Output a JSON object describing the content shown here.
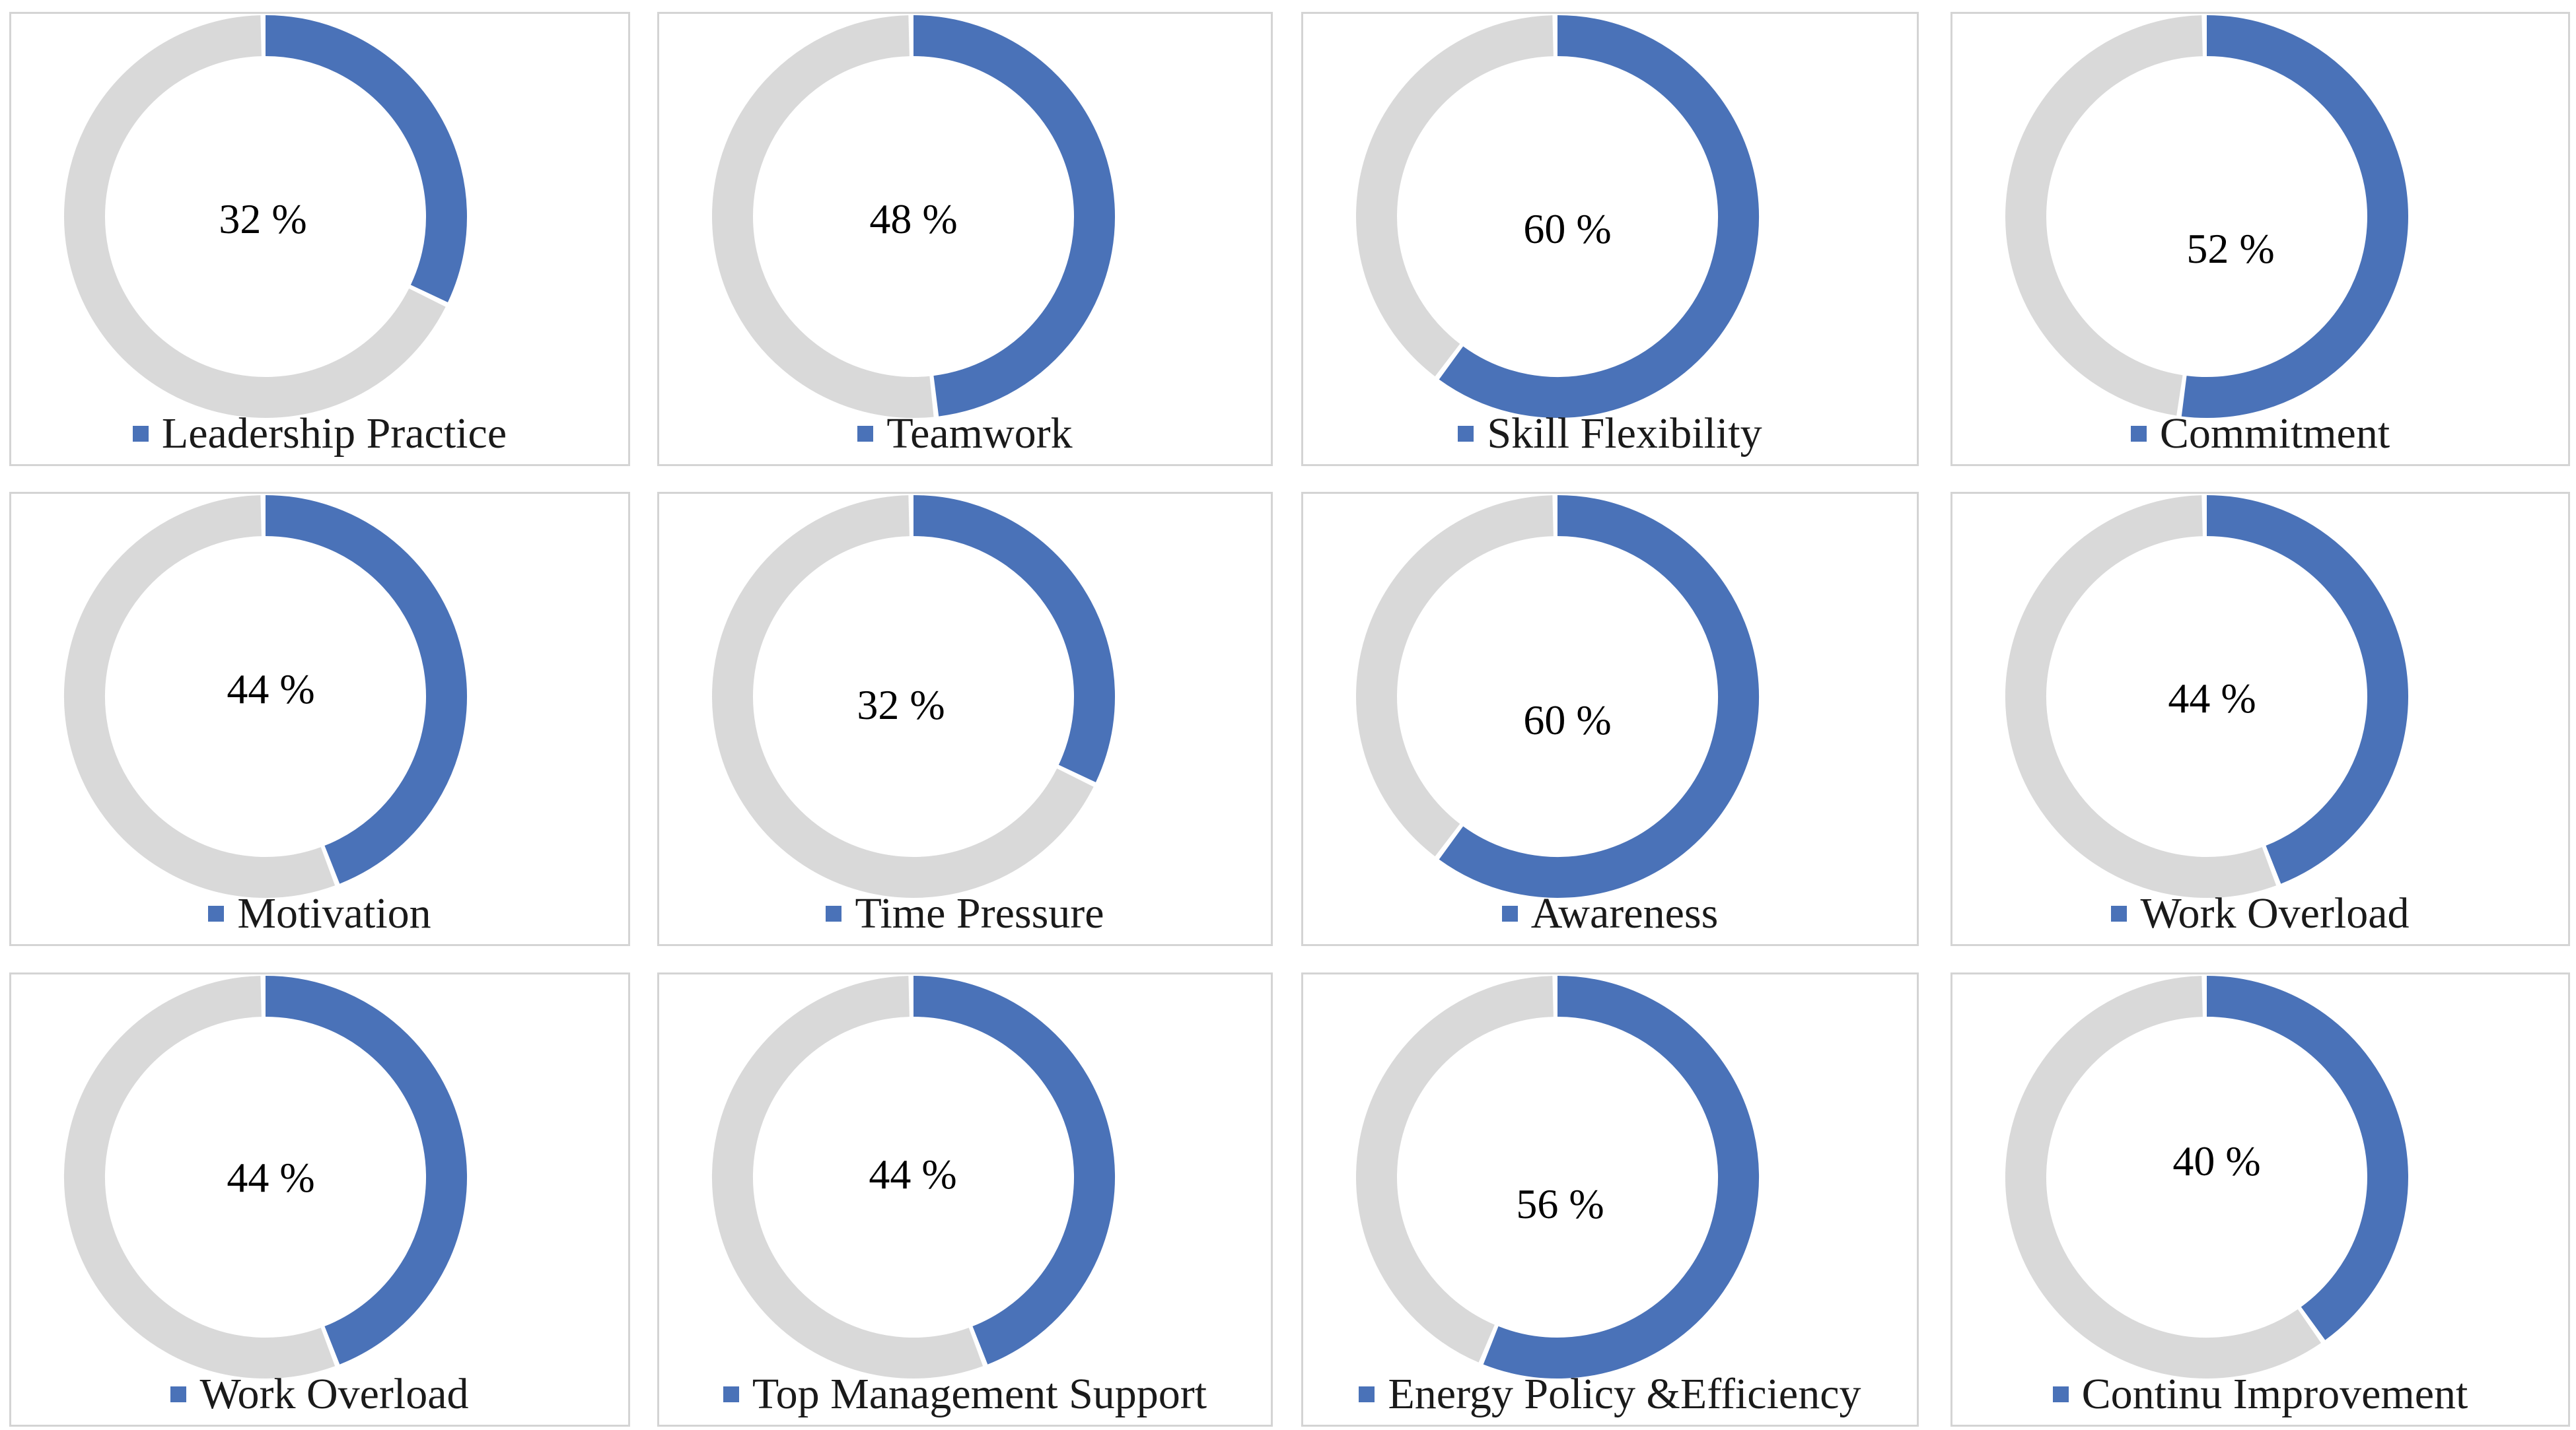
{
  "colors": {
    "accent": "#4a72b8",
    "track": "#d9d9d9",
    "panel_border": "#d4d4d4",
    "text": "#1a1a1a"
  },
  "chart_data": [
    {
      "type": "pie",
      "subtype": "doughnut",
      "legend": "Leadership Practice",
      "value": 32,
      "value_label": "32 %",
      "values": [
        32,
        68
      ]
    },
    {
      "type": "pie",
      "subtype": "doughnut",
      "legend": "Teamwork",
      "value": 48,
      "value_label": "48 %",
      "values": [
        48,
        52
      ]
    },
    {
      "type": "pie",
      "subtype": "doughnut",
      "legend": "Skill Flexibility",
      "value": 60,
      "value_label": "60 %",
      "values": [
        60,
        40
      ]
    },
    {
      "type": "pie",
      "subtype": "doughnut",
      "legend": "Commitment",
      "value": 52,
      "value_label": "52 %",
      "values": [
        52,
        48
      ]
    },
    {
      "type": "pie",
      "subtype": "doughnut",
      "legend": "Motivation",
      "value": 44,
      "value_label": "44 %",
      "values": [
        44,
        56
      ]
    },
    {
      "type": "pie",
      "subtype": "doughnut",
      "legend": "Time Pressure",
      "value": 32,
      "value_label": "32 %",
      "values": [
        32,
        68
      ]
    },
    {
      "type": "pie",
      "subtype": "doughnut",
      "legend": "Awareness",
      "value": 60,
      "value_label": "60 %",
      "values": [
        60,
        40
      ]
    },
    {
      "type": "pie",
      "subtype": "doughnut",
      "legend": "Work Overload",
      "value": 44,
      "value_label": "44 %",
      "values": [
        44,
        56
      ]
    },
    {
      "type": "pie",
      "subtype": "doughnut",
      "legend": "Work Overload",
      "value": 44,
      "value_label": "44 %",
      "values": [
        44,
        56
      ]
    },
    {
      "type": "pie",
      "subtype": "doughnut",
      "legend": "Top Management Support",
      "value": 44,
      "value_label": "44 %",
      "values": [
        44,
        56
      ]
    },
    {
      "type": "pie",
      "subtype": "doughnut",
      "legend": "Energy Policy &Efficiency",
      "value": 56,
      "value_label": "56 %",
      "values": [
        56,
        44
      ]
    },
    {
      "type": "pie",
      "subtype": "doughnut",
      "legend": "Continu Improvement",
      "value": 40,
      "value_label": "40 %",
      "values": [
        40,
        60
      ]
    }
  ]
}
